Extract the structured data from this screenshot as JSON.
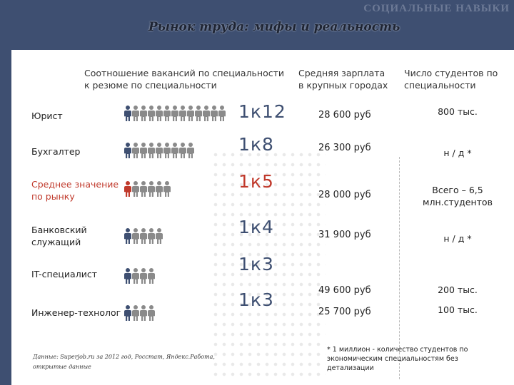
{
  "brand": "СОЦИАЛЬНЫЕ НАВЫКИ",
  "title": "Рынок труда: мифы и реальность",
  "headers": {
    "ratio": "Соотношение вакансий по специальности\nк резюме по специальности",
    "salary": "Средняя зарплата\nв крупных городах",
    "students": "Число студентов по\nспециальности"
  },
  "colors": {
    "person_default": "#8a8a8a",
    "person_accent": "#3e4f71",
    "person_highlight": "#c0392b",
    "ratio": "#3e4f71",
    "highlight": "#c0392b"
  },
  "rows": [
    {
      "label": "Юрист",
      "ratio": "1к12",
      "salary": "28 600 руб",
      "students": "800 тыс.",
      "persons": 13,
      "highlight": false
    },
    {
      "label": "Бухгалтер",
      "ratio": "1к8",
      "salary": "26 300 руб",
      "students": "н / д *",
      "persons": 9,
      "highlight": false
    },
    {
      "label": "Среднее значение\nпо рынку",
      "ratio": "1к5",
      "salary": "28 000 руб",
      "students": "Всего – 6,5\nмлн.студентов",
      "persons": 6,
      "highlight": true
    },
    {
      "label": "Банковский\nслужащий",
      "ratio": "1к4",
      "salary": "31 900 руб",
      "students": "н / д *",
      "persons": 5,
      "highlight": false
    },
    {
      "label": "IT-специалист",
      "ratio": "1к3",
      "salary": "49 600 руб",
      "students": "200 тыс.",
      "persons": 4,
      "highlight": false
    },
    {
      "label": "Инженер-технолог",
      "ratio": "1к3",
      "salary": "25 700 руб",
      "students": "100 тыс.",
      "persons": 4,
      "highlight": false
    }
  ],
  "source": "Данные: Superjob.ru за 2012 год, Росстат, Яндекс.Работа, открытые данные",
  "footnote": "* 1 миллион - количество студентов по экономическим специальностям без детализации"
}
